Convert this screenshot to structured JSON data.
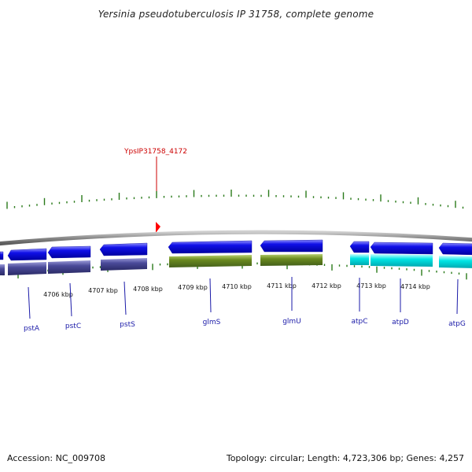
{
  "title": "Yersinia pseudotuberculosis IP 31758, complete genome",
  "highlight": {
    "label": "YpsIP31758_4172",
    "color": "#cc0000"
  },
  "kbp_labels": [
    "4706 kbp",
    "4707 kbp",
    "4708 kbp",
    "4709 kbp",
    "4710 kbp",
    "4711 kbp",
    "4712 kbp",
    "4713 kbp",
    "4714 kbp"
  ],
  "genes": [
    {
      "name": "pstA",
      "color": "#1a1aa8"
    },
    {
      "name": "pstC",
      "color": "#1a1aa8"
    },
    {
      "name": "pstS",
      "color": "#1a1aa8"
    },
    {
      "name": "glmS",
      "color": "#1a1aa8"
    },
    {
      "name": "glmU",
      "color": "#1a1aa8"
    },
    {
      "name": "atpC",
      "color": "#1a1aa8"
    },
    {
      "name": "atpD",
      "color": "#1a1aa8"
    },
    {
      "name": "atpG",
      "color": "#1a1aa8"
    }
  ],
  "track_colors": {
    "cds": "#1010e8",
    "cog_purple": "#4a4a99",
    "cog_green": "#6a8a1f",
    "cog_cyan": "#00e5e5",
    "backbone": "#909090",
    "gc_skew": "#2a7a1a"
  },
  "footer": {
    "accession": "Accession: NC_009708",
    "stats": "Topology: circular; Length: 4,723,306 bp; Genes: 4,257"
  }
}
